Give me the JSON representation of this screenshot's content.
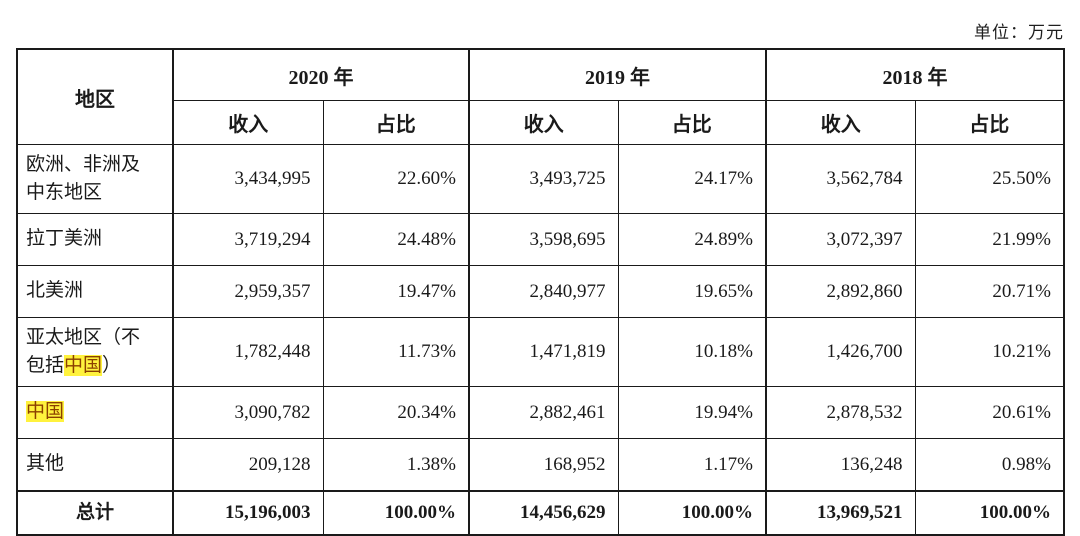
{
  "page": {
    "unit_label": "单位：万元"
  },
  "table": {
    "corner_header": "地区",
    "year_groups": [
      {
        "year": "2020 年",
        "sub": [
          "收入",
          "占比"
        ]
      },
      {
        "year": "2019 年",
        "sub": [
          "收入",
          "占比"
        ]
      },
      {
        "year": "2018 年",
        "sub": [
          "收入",
          "占比"
        ]
      }
    ],
    "highlight": {
      "text": "中国",
      "bg": "#fff23d",
      "color": "#8b4000"
    },
    "rows": [
      {
        "region_parts": [
          {
            "t": "欧洲、非洲及中东地区",
            "hl": false
          }
        ],
        "tall": true,
        "values": [
          "3,434,995",
          "22.60%",
          "3,493,725",
          "24.17%",
          "3,562,784",
          "25.50%"
        ]
      },
      {
        "region_parts": [
          {
            "t": "拉丁美洲",
            "hl": false
          }
        ],
        "tall": false,
        "values": [
          "3,719,294",
          "24.48%",
          "3,598,695",
          "24.89%",
          "3,072,397",
          "21.99%"
        ]
      },
      {
        "region_parts": [
          {
            "t": "北美洲",
            "hl": false
          }
        ],
        "tall": false,
        "values": [
          "2,959,357",
          "19.47%",
          "2,840,977",
          "19.65%",
          "2,892,860",
          "20.71%"
        ]
      },
      {
        "region_parts": [
          {
            "t": "亚太地区（不包括",
            "hl": false
          },
          {
            "t": "中国",
            "hl": true
          },
          {
            "t": "）",
            "hl": false
          }
        ],
        "tall": true,
        "values": [
          "1,782,448",
          "11.73%",
          "1,471,819",
          "10.18%",
          "1,426,700",
          "10.21%"
        ]
      },
      {
        "region_parts": [
          {
            "t": "中国",
            "hl": true
          }
        ],
        "tall": false,
        "values": [
          "3,090,782",
          "20.34%",
          "2,882,461",
          "19.94%",
          "2,878,532",
          "20.61%"
        ]
      },
      {
        "region_parts": [
          {
            "t": "其他",
            "hl": false
          }
        ],
        "tall": false,
        "values": [
          "209,128",
          "1.38%",
          "168,952",
          "1.17%",
          "136,248",
          "0.98%"
        ]
      }
    ],
    "total_row": {
      "label": "总计",
      "values": [
        "15,196,003",
        "100.00%",
        "14,456,629",
        "100.00%",
        "13,969,521",
        "100.00%"
      ]
    }
  }
}
